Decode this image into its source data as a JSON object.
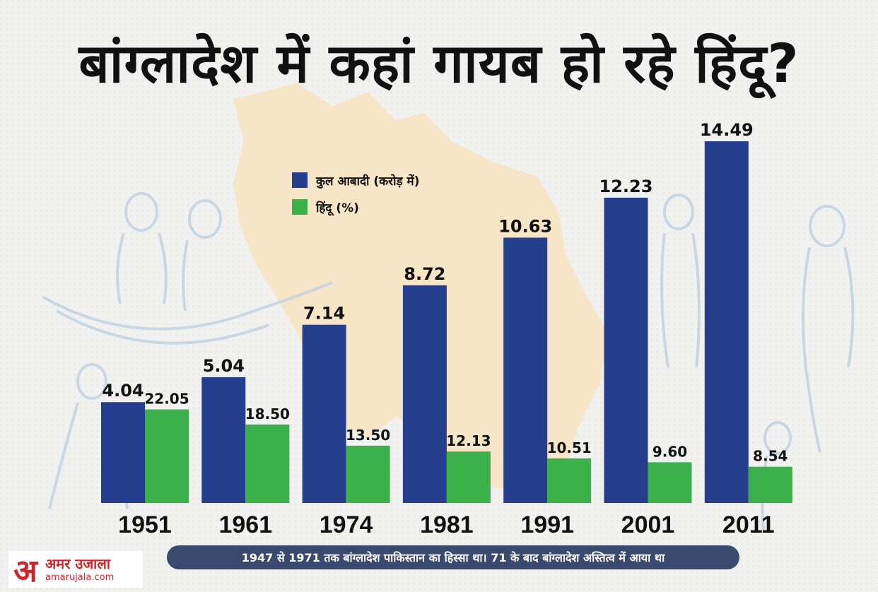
{
  "title": "बांग्लादेश में कहां गायब हो रहे हिंदू?",
  "footnote": "1947 से 1971 तक बांग्लादेश पाकिस्तान का हिस्सा था। 71 के बाद बांग्लादेश अस्तित्व में आया था",
  "logo": {
    "name": "अमर उजाला",
    "mark": "अ",
    "url": "amarujala.com"
  },
  "colors": {
    "population": "#253f8e",
    "hindu": "#3cb04a",
    "map": "#f6e3c2",
    "background": "#f1f1ef"
  },
  "chart_data": {
    "type": "bar",
    "categories": [
      "1951",
      "1961",
      "1974",
      "1981",
      "1991",
      "2001",
      "2011"
    ],
    "series": [
      {
        "name": "कुल आबादी (करोड़ में)",
        "values": [
          4.04,
          5.04,
          7.14,
          8.72,
          10.63,
          12.23,
          14.49
        ],
        "labels": [
          "4.04",
          "5.04",
          "7.14",
          "8.72",
          "10.63",
          "12.23",
          "14.49"
        ]
      },
      {
        "name": "हिंदू (%)",
        "values": [
          22.05,
          18.5,
          13.5,
          12.13,
          10.51,
          9.6,
          8.54
        ],
        "labels": [
          "22.05",
          "18.50",
          "13.50",
          "12.13",
          "10.51",
          "9.60",
          "8.54"
        ]
      }
    ],
    "legend_position": "top-left",
    "grid": false
  }
}
